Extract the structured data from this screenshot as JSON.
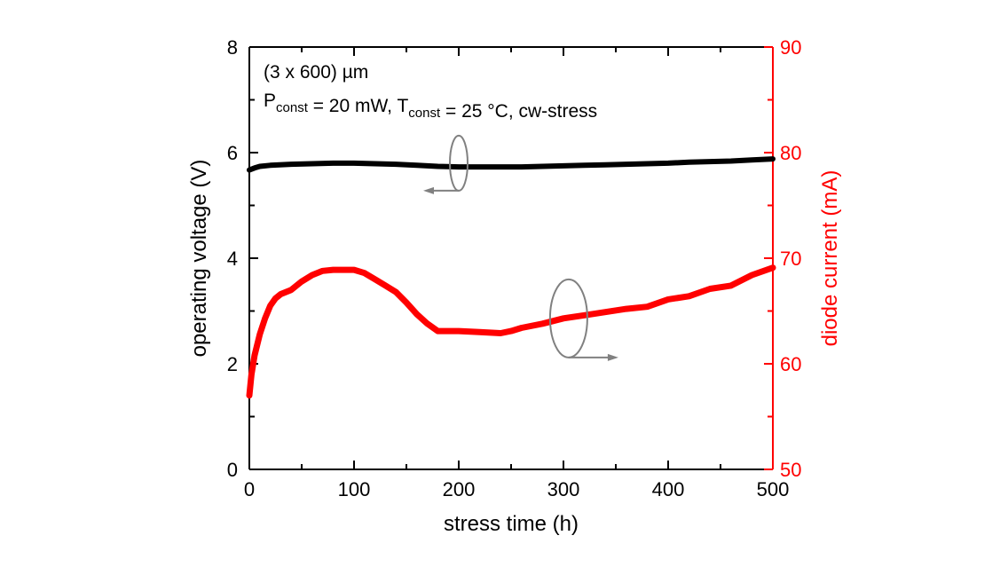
{
  "chart_data": {
    "type": "line",
    "title": "",
    "annotations": {
      "line1": "(3 x 600) µm",
      "line2_parts": [
        {
          "text": "P",
          "sub": "const"
        },
        {
          "text": " = 20 mW, T",
          "sub": "const"
        },
        {
          "text": " = 25 °C, cw-stress",
          "sub": ""
        }
      ]
    },
    "xlabel": "stress time (h)",
    "ylabel_left": "operating voltage (V)",
    "ylabel_right": "diode current (mA)",
    "xlim": [
      0,
      500
    ],
    "ylim_left": [
      0,
      8
    ],
    "ylim_right": [
      50,
      90
    ],
    "x_ticks": [
      "0",
      "100",
      "200",
      "300",
      "400",
      "500"
    ],
    "y_left_ticks": [
      "0",
      "2",
      "4",
      "6",
      "8"
    ],
    "y_right_ticks": [
      "50",
      "60",
      "70",
      "80",
      "90"
    ],
    "colors": {
      "left_axis": "#000000",
      "right_axis": "#ff0000",
      "arrow": "#808080"
    },
    "grid": false,
    "series": [
      {
        "name": "operating voltage",
        "axis": "left",
        "color": "#000000",
        "x": [
          0,
          5,
          10,
          20,
          40,
          60,
          80,
          100,
          120,
          140,
          160,
          180,
          200,
          220,
          240,
          260,
          280,
          300,
          320,
          340,
          360,
          380,
          400,
          420,
          440,
          460,
          480,
          500
        ],
        "y": [
          5.67,
          5.71,
          5.74,
          5.76,
          5.78,
          5.79,
          5.8,
          5.8,
          5.79,
          5.78,
          5.76,
          5.74,
          5.73,
          5.73,
          5.73,
          5.73,
          5.74,
          5.75,
          5.76,
          5.77,
          5.78,
          5.79,
          5.8,
          5.82,
          5.83,
          5.84,
          5.86,
          5.88
        ]
      },
      {
        "name": "diode current",
        "axis": "right",
        "color": "#ff0000",
        "x": [
          0,
          2,
          5,
          10,
          15,
          20,
          25,
          30,
          40,
          50,
          60,
          70,
          80,
          100,
          110,
          120,
          130,
          140,
          150,
          160,
          170,
          180,
          200,
          220,
          240,
          250,
          260,
          280,
          300,
          320,
          340,
          360,
          380,
          400,
          420,
          440,
          460,
          480,
          500
        ],
        "y": [
          57.0,
          59.0,
          60.8,
          62.8,
          64.3,
          65.5,
          66.2,
          66.6,
          67.0,
          67.8,
          68.4,
          68.8,
          68.9,
          68.9,
          68.6,
          68.0,
          67.4,
          66.8,
          65.8,
          64.7,
          63.8,
          63.1,
          63.1,
          63.0,
          62.9,
          63.1,
          63.4,
          63.8,
          64.3,
          64.6,
          64.9,
          65.2,
          65.4,
          66.1,
          66.4,
          67.1,
          67.4,
          68.4,
          69.1
        ]
      }
    ],
    "markers": [
      {
        "name": "voltage-series-indicator",
        "x": 200,
        "y_axis": "left",
        "y": 5.8,
        "arrow_direction": "left"
      },
      {
        "name": "current-series-indicator",
        "x": 305,
        "y_axis": "right",
        "y": 64.3,
        "arrow_direction": "right"
      }
    ]
  }
}
